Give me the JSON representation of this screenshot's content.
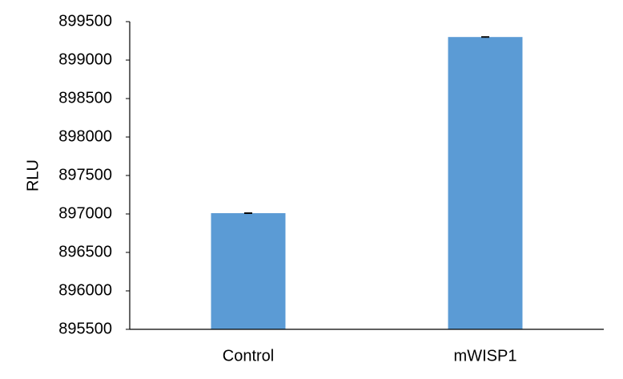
{
  "chart_data": {
    "type": "bar",
    "y_label": "RLU",
    "categories": [
      "Control",
      "mWISP1"
    ],
    "values": [
      897010,
      899300
    ],
    "errors": [
      5,
      5
    ],
    "color": "#5b9bd5",
    "ylim": [
      895500,
      899500
    ],
    "yticks": [
      895500,
      896000,
      896500,
      897000,
      897500,
      898000,
      898500,
      899000,
      899500
    ],
    "grid": false
  }
}
